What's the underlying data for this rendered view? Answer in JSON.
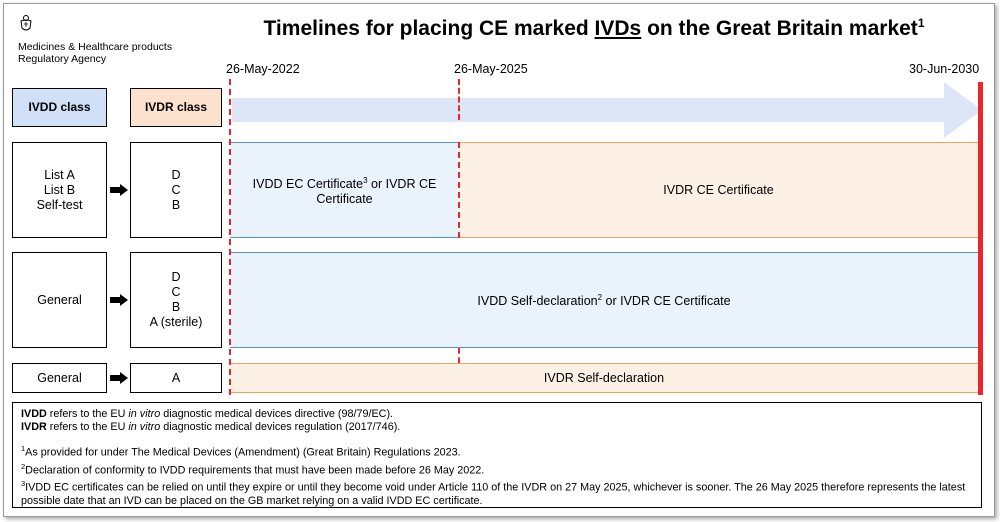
{
  "header": {
    "org_line1": "Medicines & Healthcare products",
    "org_line2": "Regulatory Agency",
    "title_pre": "Timelines for placing CE marked ",
    "title_underlined": "IVDs",
    "title_post": " on the Great Britain market",
    "title_sup": "1"
  },
  "dates": [
    "26-May-2022",
    "26-May-2025",
    "30-Jun-2030"
  ],
  "columns": {
    "ivdd": "IVDD class",
    "ivdr": "IVDR class"
  },
  "rows": [
    {
      "ivdd_lines": [
        "List A",
        "List B",
        "Self-test"
      ],
      "ivdr_lines": [
        "D",
        "C",
        "B"
      ],
      "band1_pre": "IVDD EC Certificate",
      "band1_sup": "3",
      "band1_post": " or IVDR CE Certificate",
      "band2": "IVDR CE Certificate"
    },
    {
      "ivdd_lines": [
        "General"
      ],
      "ivdr_lines": [
        "D",
        "C",
        "B",
        "A (sterile)"
      ],
      "band_pre": "IVDD Self-declaration",
      "band_sup": "2",
      "band_post": " or IVDR CE Certificate"
    },
    {
      "ivdd_lines": [
        "General"
      ],
      "ivdr_lines": [
        "A"
      ],
      "band": "IVDR Self-declaration"
    }
  ],
  "notes": {
    "ivdd_term": "IVDD",
    "ivdd_pre": " refers to the EU ",
    "ivdd_italic": "in vitro",
    "ivdd_post": " diagnostic medical devices directive (98/79/EC).",
    "ivdr_term": "IVDR",
    "ivdr_pre": " refers to the EU ",
    "ivdr_italic": "in vitro",
    "ivdr_post": " diagnostic medical devices regulation (2017/746).",
    "footnotes": [
      {
        "num": "1",
        "text": "As provided for under The Medical Devices (Amendment) (Great Britain) Regulations 2023."
      },
      {
        "num": "2",
        "text": "Declaration of conformity to IVDD requirements that must have been made before 26 May 2022."
      },
      {
        "num": "3",
        "text": "IVDD EC certificates can be relied on until they expire or until they become void under Article 110 of the IVDR on 27 May 2025, whichever is sooner. The 26 May 2025 therefore represents the latest possible date that an IVD can be placed on the GB market relying on a valid IVDD EC certificate."
      }
    ]
  },
  "colors": {
    "ivdd_header": "#cfe0f7",
    "ivdr_header": "#fce2cc",
    "arrow": "#dce6f6",
    "red": "#e8262c"
  }
}
